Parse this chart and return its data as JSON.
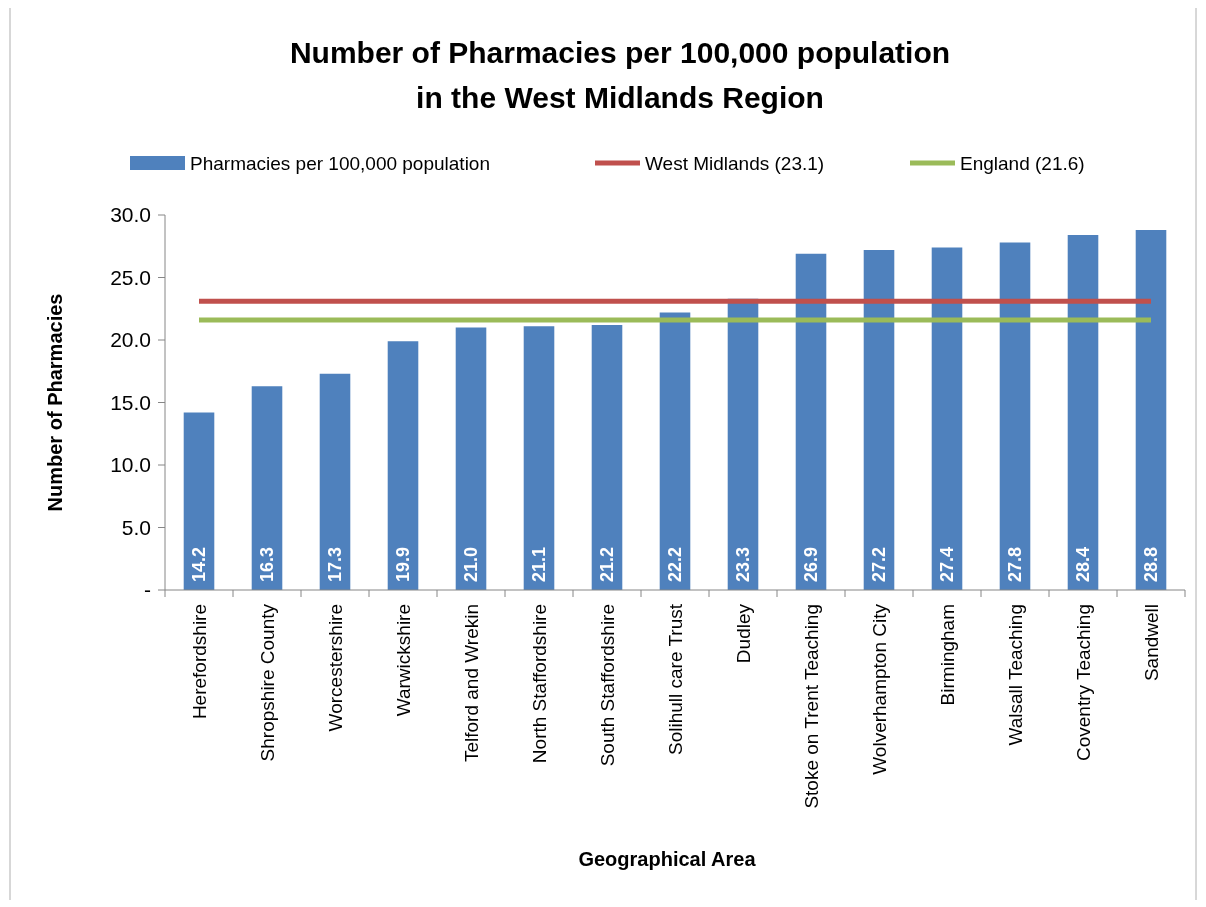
{
  "chart_data": {
    "type": "bar",
    "title": "Number of Pharmacies per 100,000 population\nin the West Midlands Region",
    "xlabel": "Geographical Area",
    "ylabel": "Number of Pharmacies",
    "categories": [
      "Herefordshire",
      "Shropshire County",
      "Worcestershire",
      "Warwickshire",
      "Telford and Wrekin",
      "North Staffordshire",
      "South Staffordshire",
      "Solihull care Trust",
      "Dudley",
      "Stoke on Trent Teaching",
      "Wolverhampton City",
      "Birmingham",
      "Walsall Teaching",
      "Coventry Teaching",
      "Sandwell"
    ],
    "series": [
      {
        "name": "Pharmacies per 100,000 population",
        "color": "#4f81bd",
        "values": [
          14.2,
          16.3,
          17.3,
          19.9,
          21.0,
          21.1,
          21.2,
          22.2,
          23.3,
          26.9,
          27.2,
          27.4,
          27.8,
          28.4,
          28.8
        ],
        "value_labels": [
          "14.2",
          "16.3",
          "17.3",
          "19.9",
          "21.0",
          "21.1",
          "21.2",
          "22.2",
          "23.3",
          "26.9",
          "27.2",
          "27.4",
          "27.8",
          "28.4",
          "28.8"
        ]
      },
      {
        "name": "West Midlands (23.1)",
        "type": "line",
        "color": "#c0504d",
        "values": [
          23.1,
          23.1,
          23.1,
          23.1,
          23.1,
          23.1,
          23.1,
          23.1,
          23.1,
          23.1,
          23.1,
          23.1,
          23.1,
          23.1,
          23.1
        ]
      },
      {
        "name": "England (21.6)",
        "type": "line",
        "color": "#9bbb59",
        "values": [
          21.6,
          21.6,
          21.6,
          21.6,
          21.6,
          21.6,
          21.6,
          21.6,
          21.6,
          21.6,
          21.6,
          21.6,
          21.6,
          21.6,
          21.6
        ]
      }
    ],
    "ylim": [
      0,
      30
    ],
    "yticks": [
      {
        "value": 0,
        "label": "-"
      },
      {
        "value": 5,
        "label": "5.0"
      },
      {
        "value": 10,
        "label": "10.0"
      },
      {
        "value": 15,
        "label": "15.0"
      },
      {
        "value": 20,
        "label": "20.0"
      },
      {
        "value": 25,
        "label": "25.0"
      },
      {
        "value": 30,
        "label": "30.0"
      }
    ],
    "legend": "top",
    "grid": false
  }
}
